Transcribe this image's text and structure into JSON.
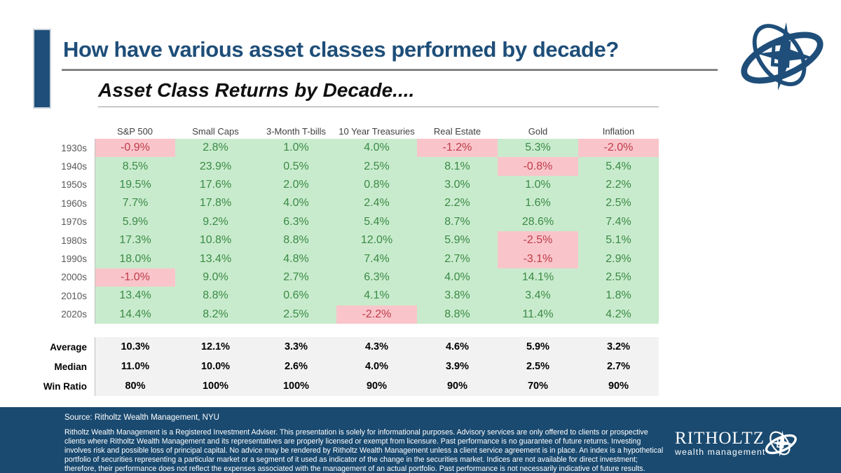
{
  "colors": {
    "navy": "#1E4E79",
    "footer_navy": "#1A4A70",
    "green_bg": "#C9EBCD",
    "green_text": "#3A8A46",
    "red_bg": "#F9C5CB",
    "red_text": "#BF3B48",
    "summary_bg": "#F2F2F2"
  },
  "header": {
    "title": "How have various asset classes performed by decade?",
    "subtitle": "Asset Class Returns by Decade...."
  },
  "table": {
    "columns": [
      "S&P 500",
      "Small Caps",
      "3-Month T-bills",
      "10 Year Treasuries",
      "Real Estate",
      "Gold",
      "Inflation"
    ],
    "rows": [
      {
        "decade": "1930s",
        "values": [
          "-0.9%",
          "2.8%",
          "1.0%",
          "4.0%",
          "-1.2%",
          "5.3%",
          "-2.0%"
        ]
      },
      {
        "decade": "1940s",
        "values": [
          "8.5%",
          "23.9%",
          "0.5%",
          "2.5%",
          "8.1%",
          "-0.8%",
          "5.4%"
        ]
      },
      {
        "decade": "1950s",
        "values": [
          "19.5%",
          "17.6%",
          "2.0%",
          "0.8%",
          "3.0%",
          "1.0%",
          "2.2%"
        ]
      },
      {
        "decade": "1960s",
        "values": [
          "7.7%",
          "17.8%",
          "4.0%",
          "2.4%",
          "2.2%",
          "1.6%",
          "2.5%"
        ]
      },
      {
        "decade": "1970s",
        "values": [
          "5.9%",
          "9.2%",
          "6.3%",
          "5.4%",
          "8.7%",
          "28.6%",
          "7.4%"
        ]
      },
      {
        "decade": "1980s",
        "values": [
          "17.3%",
          "10.8%",
          "8.8%",
          "12.0%",
          "5.9%",
          "-2.5%",
          "5.1%"
        ]
      },
      {
        "decade": "1990s",
        "values": [
          "18.0%",
          "13.4%",
          "4.8%",
          "7.4%",
          "2.7%",
          "-3.1%",
          "2.9%"
        ]
      },
      {
        "decade": "2000s",
        "values": [
          "-1.0%",
          "9.0%",
          "2.7%",
          "6.3%",
          "4.0%",
          "14.1%",
          "2.5%"
        ]
      },
      {
        "decade": "2010s",
        "values": [
          "13.4%",
          "8.8%",
          "0.6%",
          "4.1%",
          "3.8%",
          "3.4%",
          "1.8%"
        ]
      },
      {
        "decade": "2020s",
        "values": [
          "14.4%",
          "8.2%",
          "2.5%",
          "-2.2%",
          "8.8%",
          "11.4%",
          "4.2%"
        ]
      }
    ],
    "summary": [
      {
        "label": "Average",
        "values": [
          "10.3%",
          "12.1%",
          "3.3%",
          "4.3%",
          "4.6%",
          "5.9%",
          "3.2%"
        ]
      },
      {
        "label": "Median",
        "values": [
          "11.0%",
          "10.0%",
          "2.6%",
          "4.0%",
          "3.9%",
          "2.5%",
          "2.7%"
        ]
      },
      {
        "label": "Win Ratio",
        "values": [
          "80%",
          "100%",
          "100%",
          "90%",
          "90%",
          "70%",
          "90%"
        ]
      }
    ]
  },
  "chart_data": {
    "type": "table",
    "title": "Asset Class Returns by Decade....",
    "categories": [
      "1930s",
      "1940s",
      "1950s",
      "1960s",
      "1970s",
      "1980s",
      "1990s",
      "2000s",
      "2010s",
      "2020s"
    ],
    "unit": "%",
    "series": [
      {
        "name": "S&P 500",
        "values": [
          -0.9,
          8.5,
          19.5,
          7.7,
          5.9,
          17.3,
          18.0,
          -1.0,
          13.4,
          14.4
        ],
        "average": 10.3,
        "median": 11.0,
        "win_ratio": 80
      },
      {
        "name": "Small Caps",
        "values": [
          2.8,
          23.9,
          17.6,
          17.8,
          9.2,
          10.8,
          13.4,
          9.0,
          8.8,
          8.2
        ],
        "average": 12.1,
        "median": 10.0,
        "win_ratio": 100
      },
      {
        "name": "3-Month T-bills",
        "values": [
          1.0,
          0.5,
          2.0,
          4.0,
          6.3,
          8.8,
          4.8,
          2.7,
          0.6,
          2.5
        ],
        "average": 3.3,
        "median": 2.6,
        "win_ratio": 100
      },
      {
        "name": "10 Year Treasuries",
        "values": [
          4.0,
          2.5,
          0.8,
          2.4,
          5.4,
          12.0,
          7.4,
          6.3,
          4.1,
          -2.2
        ],
        "average": 4.3,
        "median": 4.0,
        "win_ratio": 90
      },
      {
        "name": "Real Estate",
        "values": [
          -1.2,
          8.1,
          3.0,
          2.2,
          8.7,
          5.9,
          2.7,
          4.0,
          3.8,
          8.8
        ],
        "average": 4.6,
        "median": 3.9,
        "win_ratio": 90
      },
      {
        "name": "Gold",
        "values": [
          5.3,
          -0.8,
          1.0,
          1.6,
          28.6,
          -2.5,
          -3.1,
          14.1,
          3.4,
          11.4
        ],
        "average": 5.9,
        "median": 2.5,
        "win_ratio": 70
      },
      {
        "name": "Inflation",
        "values": [
          -2.0,
          5.4,
          2.2,
          2.5,
          7.4,
          5.1,
          2.9,
          2.5,
          1.8,
          4.2
        ],
        "average": 3.2,
        "median": 2.7,
        "win_ratio": 90
      }
    ],
    "highlight_rule": "negative values shaded pink with red text; non-negative shaded green with green text",
    "legend_position": "none",
    "grid": false
  },
  "footer": {
    "source": "Source: Ritholtz Wealth Management, NYU",
    "disclaimer": "Ritholtz Wealth Management is a Registered Investment Adviser. This presentation is solely for informational purposes. Advisory services are only offered to clients or prospective clients where Ritholtz Wealth Management and its representatives are properly licensed or exempt from licensure. Past performance is no guarantee of future returns. Investing involves risk and possible loss of principal capital. No advice may be rendered by Ritholtz Wealth Management unless a client service agreement is in place. An index is a hypothetical portfolio of securities representing a particular market or a segment of it used as indicator of the change in the securities market. Indices are not available for direct investment; therefore, their performance does not reflect the expenses associated with the management of an actual portfolio. Past performance is not necessarily indicative of future results.",
    "logo_title": "RITHOLTZ",
    "logo_subtitle": "wealth management"
  }
}
